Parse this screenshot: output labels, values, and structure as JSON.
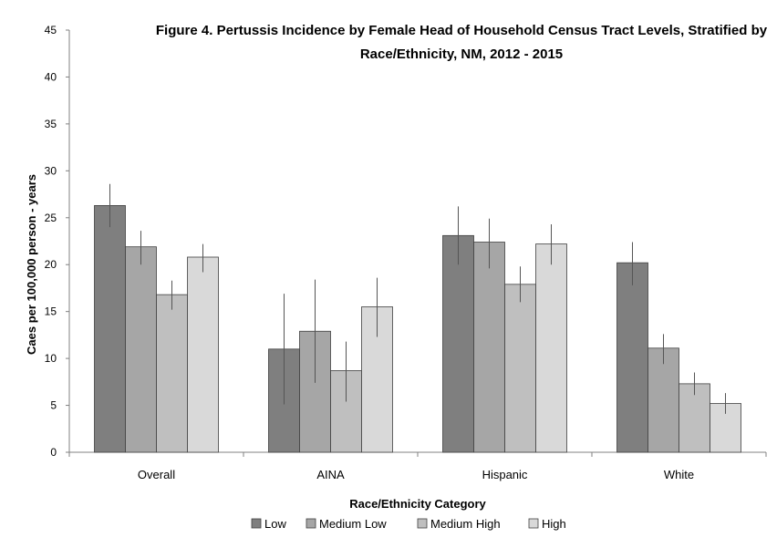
{
  "chart_data": {
    "type": "bar",
    "title_line1": "Figure 4. Pertussis Incidence by Female Head of Household Census Tract Levels, Stratified by",
    "title_line2": "Race/Ethnicity, NM, 2012 - 2015",
    "xlabel": "Race/Ethnicity Category",
    "ylabel": "Caes per 100,000 person -  years",
    "ylim": [
      0,
      45
    ],
    "yticks": [
      0,
      5,
      10,
      15,
      20,
      25,
      30,
      35,
      40,
      45
    ],
    "categories": [
      "Overall",
      "AINA",
      "Hispanic",
      "White"
    ],
    "series": [
      {
        "name": "Low",
        "color": "#7f7f7f",
        "values": [
          26.3,
          11.0,
          23.1,
          20.2
        ],
        "err_low": [
          24.0,
          5.1,
          20.0,
          17.8
        ],
        "err_high": [
          28.6,
          16.9,
          26.2,
          22.4
        ]
      },
      {
        "name": "Medium Low",
        "color": "#a6a6a6",
        "values": [
          21.9,
          12.9,
          22.4,
          11.1
        ],
        "err_low": [
          20.0,
          7.4,
          19.6,
          9.4
        ],
        "err_high": [
          23.6,
          18.4,
          24.9,
          12.6
        ]
      },
      {
        "name": "Medium High",
        "color": "#bfbfbf",
        "values": [
          16.8,
          8.7,
          17.9,
          7.3
        ],
        "err_low": [
          15.2,
          5.4,
          16.0,
          6.1
        ],
        "err_high": [
          18.3,
          11.8,
          19.8,
          8.5
        ]
      },
      {
        "name": "High",
        "color": "#d9d9d9",
        "values": [
          20.8,
          15.5,
          22.2,
          5.2
        ],
        "err_low": [
          19.2,
          12.3,
          20.0,
          4.1
        ],
        "err_high": [
          22.2,
          18.6,
          24.3,
          6.3
        ]
      }
    ],
    "grid": false,
    "legend_position": "bottom"
  }
}
